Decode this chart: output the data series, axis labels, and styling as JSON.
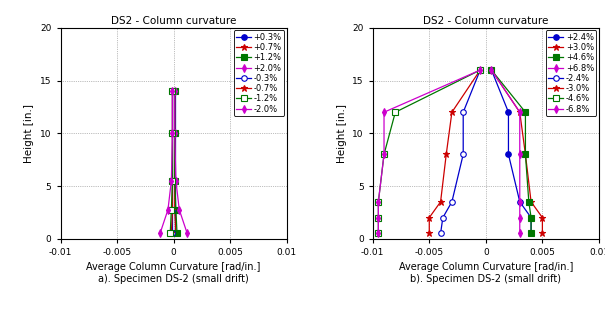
{
  "title": "DS2 - Column curvature",
  "xlabel": "Average Column Curvature [rad/in.]",
  "ylabel": "Height [in.]",
  "xlim": [
    -0.01,
    0.01
  ],
  "ylim": [
    0,
    20
  ],
  "yticks": [
    0,
    5,
    10,
    15,
    20
  ],
  "xticks": [
    -0.01,
    -0.005,
    0,
    0.005,
    0.01
  ],
  "subplot_a_label": "a). Specimen DS-2 (small drift)",
  "subplot_b_label": "b). Specimen DS-2 (small drift)",
  "plot_a": {
    "heights": [
      0.5,
      2.75,
      5.5,
      10.0,
      14.0
    ],
    "series": [
      {
        "label": "+0.3%",
        "color": "#0000cc",
        "marker": "o",
        "filled": true,
        "curvatures": [
          0.0001,
          0.0001,
          0.0001,
          0.0001,
          0.0001
        ]
      },
      {
        "label": "+0.7%",
        "color": "#cc0000",
        "marker": "*",
        "filled": true,
        "curvatures": [
          0.0002,
          0.0001,
          0.0001,
          0.0001,
          0.0001
        ]
      },
      {
        "label": "+1.2%",
        "color": "#007700",
        "marker": "s",
        "filled": true,
        "curvatures": [
          0.0003,
          0.0002,
          0.0001,
          0.0001,
          0.0001
        ]
      },
      {
        "label": "+2.0%",
        "color": "#cc00cc",
        "marker": "d",
        "filled": true,
        "curvatures": [
          0.0012,
          0.0005,
          0.0002,
          0.0001,
          0.0001
        ]
      },
      {
        "label": "-0.3%",
        "color": "#0000cc",
        "marker": "o",
        "filled": false,
        "curvatures": [
          -0.0001,
          -0.0001,
          -0.0001,
          -0.0001,
          -0.0001
        ]
      },
      {
        "label": "-0.7%",
        "color": "#cc0000",
        "marker": "*",
        "filled": true,
        "curvatures": [
          -0.0002,
          -0.0001,
          -0.0001,
          -0.0001,
          -0.0001
        ]
      },
      {
        "label": "-1.2%",
        "color": "#007700",
        "marker": "s",
        "filled": false,
        "curvatures": [
          -0.0003,
          -0.0002,
          -0.0001,
          -0.0001,
          -0.0001
        ]
      },
      {
        "label": "-2.0%",
        "color": "#cc00cc",
        "marker": "d",
        "filled": true,
        "curvatures": [
          -0.0012,
          -0.0005,
          -0.0002,
          -0.0001,
          -0.0001
        ]
      }
    ]
  },
  "plot_b": {
    "heights": [
      0.5,
      2.0,
      3.5,
      8.0,
      12.0,
      16.0
    ],
    "series": [
      {
        "label": "+2.4%",
        "color": "#0000cc",
        "marker": "o",
        "filled": true,
        "curvatures": [
          0.004,
          0.004,
          0.003,
          0.002,
          0.002,
          0.0005
        ]
      },
      {
        "label": "+3.0%",
        "color": "#cc0000",
        "marker": "*",
        "filled": true,
        "curvatures": [
          0.005,
          0.005,
          0.004,
          0.0035,
          0.003,
          0.0005
        ]
      },
      {
        "label": "+4.6%",
        "color": "#007700",
        "marker": "s",
        "filled": true,
        "curvatures": [
          0.004,
          0.004,
          0.0038,
          0.0035,
          0.0035,
          0.0005
        ]
      },
      {
        "label": "+6.8%",
        "color": "#cc00cc",
        "marker": "d",
        "filled": true,
        "curvatures": [
          0.003,
          0.003,
          0.003,
          0.003,
          0.003,
          0.0005
        ]
      },
      {
        "label": "-2.4%",
        "color": "#0000cc",
        "marker": "o",
        "filled": false,
        "curvatures": [
          -0.004,
          -0.0038,
          -0.003,
          -0.002,
          -0.002,
          -0.0005
        ]
      },
      {
        "label": "-3.0%",
        "color": "#cc0000",
        "marker": "*",
        "filled": true,
        "curvatures": [
          -0.005,
          -0.005,
          -0.004,
          -0.0035,
          -0.003,
          -0.0005
        ]
      },
      {
        "label": "-4.6%",
        "color": "#007700",
        "marker": "s",
        "filled": false,
        "curvatures": [
          -0.0095,
          -0.0095,
          -0.0095,
          -0.009,
          -0.008,
          -0.0005
        ]
      },
      {
        "label": "-6.8%",
        "color": "#cc00cc",
        "marker": "d",
        "filled": true,
        "curvatures": [
          -0.0095,
          -0.0095,
          -0.0095,
          -0.009,
          -0.009,
          -0.0005
        ]
      }
    ]
  }
}
